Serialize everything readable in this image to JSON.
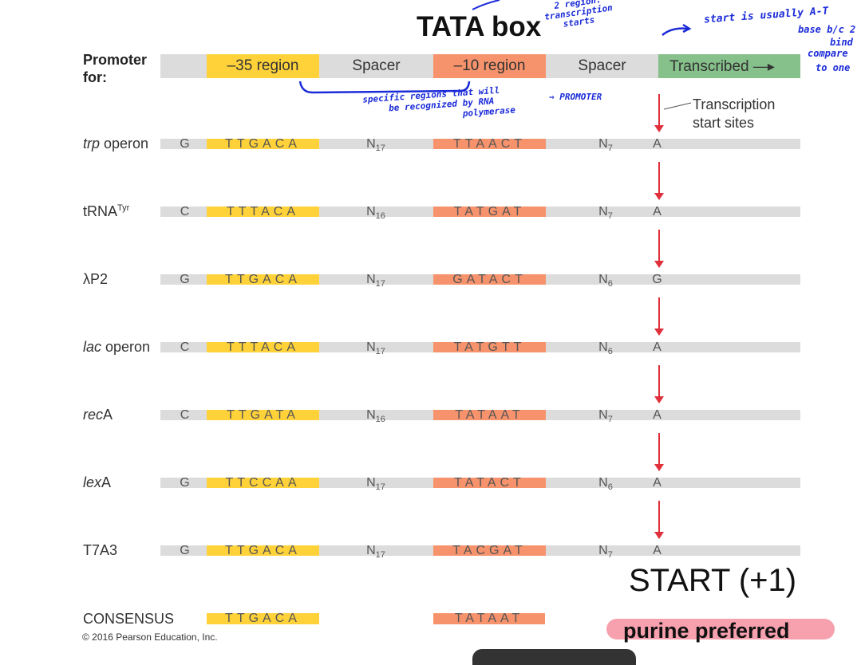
{
  "title": "TATA box",
  "promoter_label": "Promoter for:",
  "header_regions": [
    "–35 region",
    "Spacer",
    "–10 region",
    "Spacer",
    "Transcribed"
  ],
  "transcription_label": "Transcription start sites",
  "rows": [
    {
      "gene_prefix": "trp",
      "gene_suffix": " operon",
      "base1": "G",
      "box35": "TTGACA",
      "spacer1": "N",
      "spacer1_sub": "17",
      "box10": "TTAACT",
      "spacer2": "N",
      "spacer2_sub": "7",
      "start": "A"
    },
    {
      "gene_prefix": "",
      "gene_suffix": "tRNA",
      "gene_sup": "Tyr",
      "base1": "C",
      "box35": "TTTACA",
      "spacer1": "N",
      "spacer1_sub": "16",
      "box10": "TATGAT",
      "spacer2": "N",
      "spacer2_sub": "7",
      "start": "A"
    },
    {
      "gene_prefix": "",
      "gene_suffix": "λP2",
      "base1": "G",
      "box35": "TTGACA",
      "spacer1": "N",
      "spacer1_sub": "17",
      "box10": "GATACT",
      "spacer2": "N",
      "spacer2_sub": "6",
      "start": "G"
    },
    {
      "gene_prefix": "lac",
      "gene_suffix": " operon",
      "base1": "C",
      "box35": "TTTACA",
      "spacer1": "N",
      "spacer1_sub": "17",
      "box10": "TATGTT",
      "spacer2": "N",
      "spacer2_sub": "6",
      "start": "A"
    },
    {
      "gene_prefix": "rec",
      "gene_suffix": "A",
      "base1": "C",
      "box35": "TTGATA",
      "spacer1": "N",
      "spacer1_sub": "16",
      "box10": "TATAAT",
      "spacer2": "N",
      "spacer2_sub": "7",
      "start": "A"
    },
    {
      "gene_prefix": "lex",
      "gene_suffix": "A",
      "base1": "G",
      "box35": "TTCCAA",
      "spacer1": "N",
      "spacer1_sub": "17",
      "box10": "TATACT",
      "spacer2": "N",
      "spacer2_sub": "6",
      "start": "A"
    },
    {
      "gene_prefix": "",
      "gene_suffix": "T7A3",
      "base1": "G",
      "box35": "TTGACA",
      "spacer1": "N",
      "spacer1_sub": "17",
      "box10": "TACGAT",
      "spacer2": "N",
      "spacer2_sub": "7",
      "start": "A"
    }
  ],
  "consensus_label": "CONSENSUS",
  "consensus_35": "TTGACA",
  "consensus_10": "TATAAT",
  "copyright": "© 2016 Pearson Education, Inc.",
  "start_note": "START (+1)",
  "purine_note": "purine preferred",
  "annotations": {
    "top_center": [
      "2 region:",
      "transcription",
      "starts"
    ],
    "top_right": "start is usually A-T",
    "top_right2": "base b/c 2",
    "top_right3": "bind",
    "top_right4": "compare",
    "top_right5": "to one",
    "middle": [
      "specific regions that will",
      "be recognized by RNA",
      "polymerase"
    ],
    "promoter": "⇒ PROMOTER"
  },
  "colors": {
    "yellow": "#ffd23a",
    "orange": "#f6936c",
    "green": "#86c08a",
    "gray": "#dcdcdc",
    "pen": "#1b2bd8",
    "arrow": "#e0303c"
  }
}
